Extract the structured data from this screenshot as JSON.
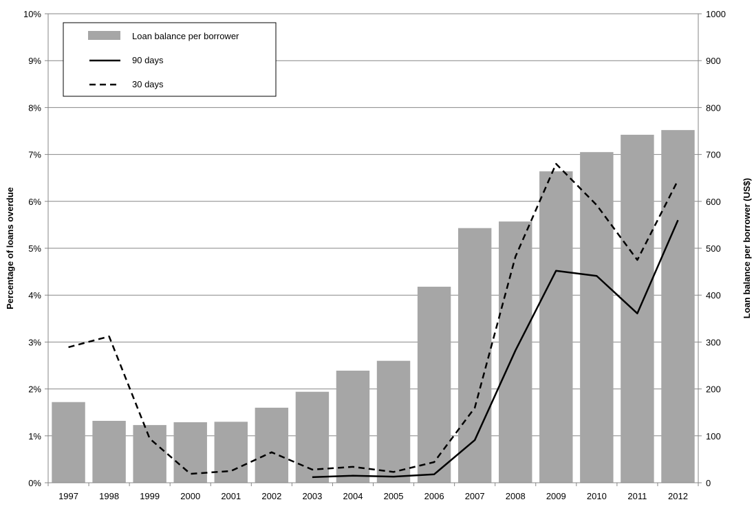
{
  "chart_data": {
    "type": "bar+line",
    "title": "",
    "categories": [
      "1997",
      "1998",
      "1999",
      "2000",
      "2001",
      "2002",
      "2003",
      "2004",
      "2005",
      "2006",
      "2007",
      "2008",
      "2009",
      "2010",
      "2011",
      "2012"
    ],
    "ylabel": "Percentage of loans overdue",
    "y2label": "Loan balance per borrower (US$)",
    "ylim": [
      0,
      10
    ],
    "y2lim": [
      0,
      1000
    ],
    "yticks": [
      "0%",
      "1%",
      "2%",
      "3%",
      "4%",
      "5%",
      "6%",
      "7%",
      "8%",
      "9%",
      "10%"
    ],
    "y2ticks": [
      "0",
      "100",
      "200",
      "300",
      "400",
      "500",
      "600",
      "700",
      "800",
      "900",
      "1000"
    ],
    "grid": true,
    "legend_position": "top-left",
    "series": [
      {
        "name": "Loan balance per borrower",
        "type": "bar",
        "axis": "right",
        "color": "#a6a6a6",
        "values": [
          172,
          132,
          123,
          129,
          130,
          160,
          194,
          239,
          260,
          418,
          543,
          557,
          664,
          705,
          742,
          752
        ]
      },
      {
        "name": "90 days",
        "type": "line",
        "style": "solid",
        "axis": "left",
        "color": "#000000",
        "values": [
          null,
          null,
          null,
          null,
          null,
          null,
          0.12,
          0.15,
          0.13,
          0.18,
          0.91,
          2.82,
          4.52,
          4.41,
          3.61,
          5.6
        ]
      },
      {
        "name": "30 days",
        "type": "line",
        "style": "dashed",
        "axis": "left",
        "color": "#000000",
        "values": [
          2.89,
          3.12,
          0.94,
          0.19,
          0.25,
          0.65,
          0.28,
          0.34,
          0.23,
          0.44,
          1.6,
          4.82,
          6.8,
          5.92,
          4.75,
          6.45
        ]
      }
    ]
  }
}
